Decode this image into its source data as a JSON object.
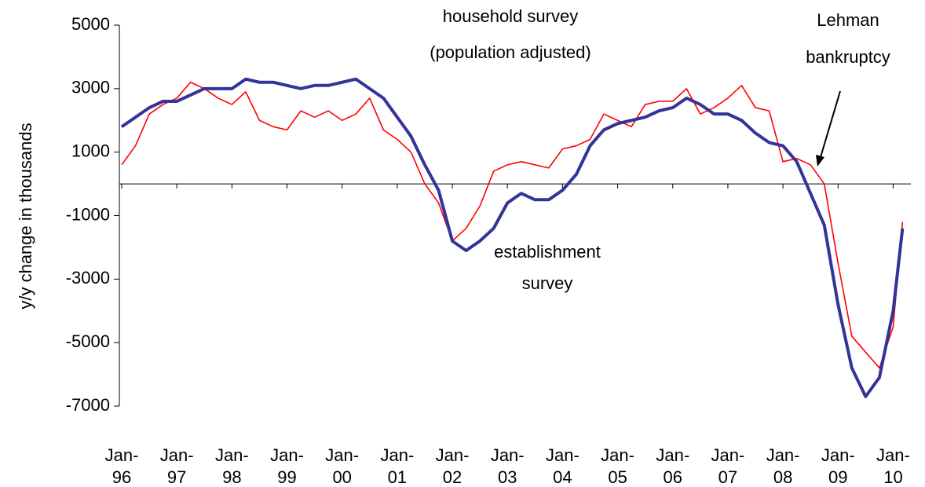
{
  "chart_data": {
    "type": "line",
    "y_label": "y/y change in thousands",
    "annotations": [
      {
        "lines": [
          "household survey",
          "(population adjusted)"
        ]
      },
      {
        "lines": [
          "Lehman",
          "bankruptcy"
        ]
      },
      {
        "lines": [
          "establishment",
          "survey"
        ]
      }
    ],
    "x": [
      1996,
      1996.25,
      1996.5,
      1996.75,
      1997,
      1997.25,
      1997.5,
      1997.75,
      1998,
      1998.25,
      1998.5,
      1998.75,
      1999,
      1999.25,
      1999.5,
      1999.75,
      2000,
      2000.25,
      2000.5,
      2000.75,
      2001,
      2001.25,
      2001.5,
      2001.75,
      2002,
      2002.25,
      2002.5,
      2002.75,
      2003,
      2003.25,
      2003.5,
      2003.75,
      2004,
      2004.25,
      2004.5,
      2004.75,
      2005,
      2005.25,
      2005.5,
      2005.75,
      2006,
      2006.25,
      2006.5,
      2006.75,
      2007,
      2007.25,
      2007.5,
      2007.75,
      2008,
      2008.25,
      2008.5,
      2008.75,
      2009,
      2009.25,
      2009.5,
      2009.75,
      2010,
      2010.17
    ],
    "series": [
      {
        "color": "#ff0000",
        "values": [
          600,
          1200,
          2200,
          2500,
          2700,
          3200,
          3000,
          2700,
          2500,
          2900,
          2000,
          1800,
          1700,
          2300,
          2100,
          2300,
          2000,
          2200,
          2700,
          1700,
          1400,
          1000,
          0,
          -600,
          -1800,
          -1400,
          -700,
          400,
          600,
          700,
          600,
          500,
          1100,
          1200,
          1400,
          2200,
          2000,
          1800,
          2500,
          2600,
          2600,
          3000,
          2200,
          2400,
          2700,
          3100,
          2400,
          2300,
          700,
          800,
          600,
          0,
          -2500,
          -4800,
          -5300,
          -5800,
          -4500,
          -1200
        ]
      },
      {
        "color": "#333399",
        "values": [
          1800,
          2100,
          2400,
          2600,
          2600,
          2800,
          3000,
          3000,
          3000,
          3300,
          3200,
          3200,
          3100,
          3000,
          3100,
          3100,
          3200,
          3300,
          3000,
          2700,
          2100,
          1500,
          600,
          -200,
          -1800,
          -2100,
          -1800,
          -1400,
          -600,
          -300,
          -500,
          -500,
          -200,
          300,
          1200,
          1700,
          1900,
          2000,
          2100,
          2300,
          2400,
          2700,
          2500,
          2200,
          2200,
          2000,
          1600,
          1300,
          1200,
          700,
          -300,
          -1300,
          -3800,
          -5800,
          -6700,
          -6100,
          -4000,
          -1400
        ]
      }
    ],
    "xlim": [
      1996,
      2010.25
    ],
    "xticks": [
      {
        "value": 1996,
        "label": "Jan-96"
      },
      {
        "value": 1997,
        "label": "Jan-97"
      },
      {
        "value": 1998,
        "label": "Jan-98"
      },
      {
        "value": 1999,
        "label": "Jan-99"
      },
      {
        "value": 2000,
        "label": "Jan-00"
      },
      {
        "value": 2001,
        "label": "Jan-01"
      },
      {
        "value": 2002,
        "label": "Jan-02"
      },
      {
        "value": 2003,
        "label": "Jan-03"
      },
      {
        "value": 2004,
        "label": "Jan-04"
      },
      {
        "value": 2005,
        "label": "Jan-05"
      },
      {
        "value": 2006,
        "label": "Jan-06"
      },
      {
        "value": 2007,
        "label": "Jan-07"
      },
      {
        "value": 2008,
        "label": "Jan-08"
      },
      {
        "value": 2009,
        "label": "Jan-09"
      },
      {
        "value": 2010,
        "label": "Jan-10"
      }
    ],
    "ylim": [
      -7000,
      5000
    ],
    "yticks": [
      5000,
      3000,
      1000,
      -1000,
      -3000,
      -5000,
      -7000
    ],
    "grid": false
  }
}
